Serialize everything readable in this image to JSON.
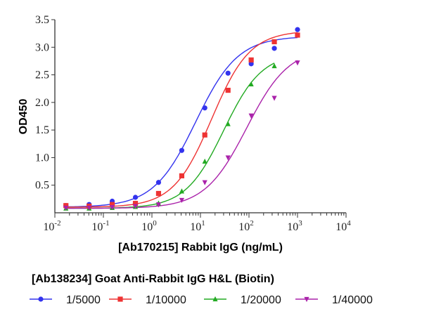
{
  "chart_data": {
    "type": "line",
    "title": "",
    "xlabel": "[Ab170215] Rabbit IgG (ng/mL)",
    "ylabel": "OD450",
    "x_scale": "log",
    "xlim": [
      0.01,
      10000
    ],
    "ylim": [
      0,
      3.5
    ],
    "x_ticks": [
      {
        "base": "10",
        "exp": "-2"
      },
      {
        "base": "10",
        "exp": "-1"
      },
      {
        "base": "10",
        "exp": "0"
      },
      {
        "base": "10",
        "exp": "1"
      },
      {
        "base": "10",
        "exp": "2"
      },
      {
        "base": "10",
        "exp": "3"
      },
      {
        "base": "10",
        "exp": "4"
      }
    ],
    "y_ticks": [
      "0.5",
      "1.0",
      "1.5",
      "2.0",
      "2.5",
      "3.0",
      "3.5"
    ],
    "legend_title": "[Ab138234] Goat Anti-Rabbit IgG H&L (Biotin)",
    "legend_placement": "bottom",
    "grid": false,
    "x": [
      0.0169,
      0.0508,
      0.152,
      0.457,
      1.37,
      4.12,
      12.3,
      37.0,
      111,
      333,
      1000
    ],
    "series": [
      {
        "name": "1/5000",
        "color": "#3333ee",
        "marker": "circle",
        "values": [
          0.13,
          0.15,
          0.21,
          0.28,
          0.55,
          1.13,
          1.9,
          2.53,
          2.7,
          2.98,
          3.32
        ]
      },
      {
        "name": "1/10000",
        "color": "#ee3333",
        "marker": "square",
        "values": [
          0.13,
          0.12,
          0.15,
          0.17,
          0.35,
          0.67,
          1.41,
          2.22,
          2.77,
          3.1,
          3.22
        ]
      },
      {
        "name": "1/20000",
        "color": "#22aa22",
        "marker": "triangle-up",
        "values": [
          0.08,
          0.08,
          0.09,
          0.11,
          0.17,
          0.39,
          0.93,
          1.61,
          2.33,
          2.66,
          null
        ]
      },
      {
        "name": "1/40000",
        "color": "#aa22aa",
        "marker": "triangle-down",
        "values": [
          0.09,
          0.09,
          0.1,
          0.12,
          0.15,
          0.23,
          0.55,
          1.0,
          1.76,
          2.08,
          2.72
        ]
      }
    ]
  }
}
